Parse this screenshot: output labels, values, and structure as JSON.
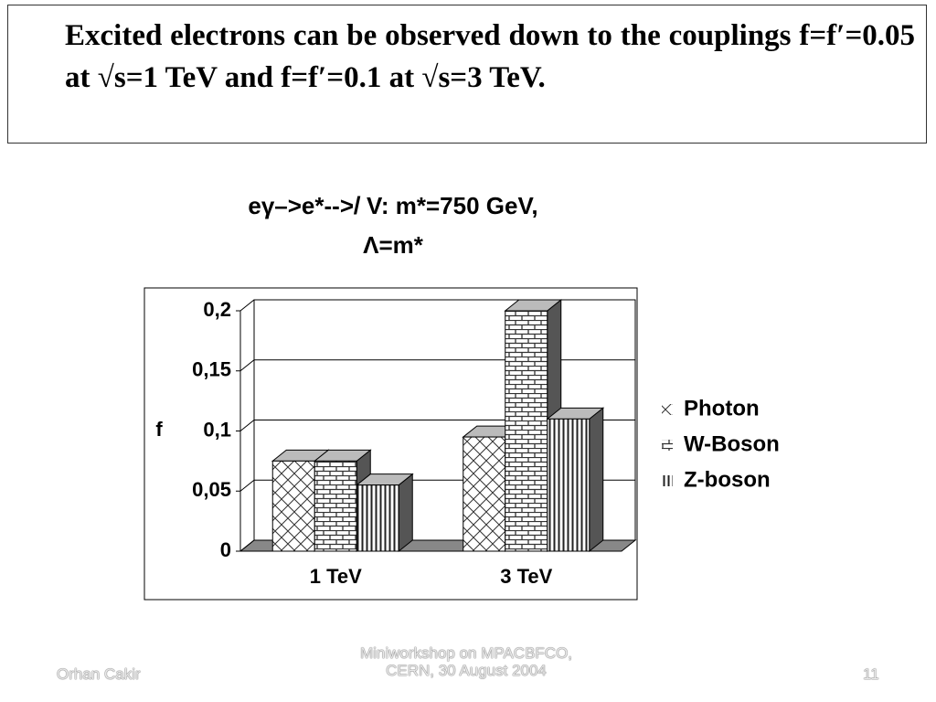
{
  "text_box": {
    "text": "Excited electrons can be observed down to the couplings f=f′=0.05 at √s=1 TeV and f=f′=0.1 at √s=3 TeV."
  },
  "chart_data": {
    "type": "bar3d",
    "title": [
      "eγ–>e*-->𝑙 V: m*=750 GeV,",
      "Λ=m*"
    ],
    "y_label": "f",
    "categories": [
      "1 TeV",
      "3 TeV"
    ],
    "series": [
      {
        "name": "Photon",
        "color": "#ffffff",
        "values": [
          0.075,
          0.095
        ]
      },
      {
        "name": "W-Boson",
        "color": "#ffffff",
        "values": [
          0.075,
          0.2
        ]
      },
      {
        "name": "Z-boson",
        "color": "#ffffff",
        "values": [
          0.055,
          0.11
        ]
      }
    ],
    "ylim": [
      0,
      0.2
    ],
    "yticks": [
      0,
      {
        "value": 0.05,
        "label": "0,05"
      },
      {
        "value": 0.1,
        "label": "0,1"
      },
      {
        "value": 0.15,
        "label": "0,15"
      },
      {
        "value": 0.2,
        "label": "0,2"
      }
    ],
    "grid": true,
    "legend": "right"
  },
  "footer": {
    "author": "Orhan Cakir",
    "event": [
      "Miniworkshop on MPACBFCO,",
      "CERN, 30 August 2004"
    ],
    "page": "11"
  }
}
